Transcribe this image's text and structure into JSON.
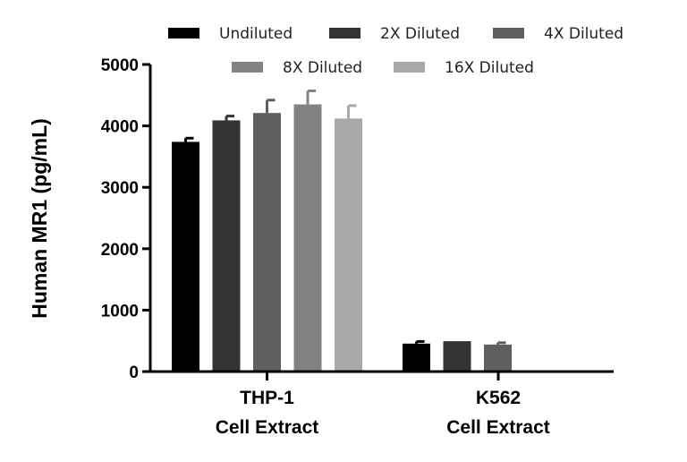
{
  "chart_data": {
    "type": "bar",
    "title": "",
    "xlabel": "",
    "ylabel": "Human MR1 (pg/mL)",
    "ylim": [
      0,
      5000
    ],
    "yticks": [
      0,
      1000,
      2000,
      3000,
      4000,
      5000
    ],
    "grid": false,
    "legend_position": "top",
    "categories": [
      {
        "line1": "THP-1",
        "line2": "Cell Extract"
      },
      {
        "line1": "K562",
        "line2": "Cell Extract"
      }
    ],
    "series": [
      {
        "name": "Undiluted",
        "color": "#000000",
        "values": [
          3740,
          455
        ],
        "errors": [
          60,
          35
        ]
      },
      {
        "name": "2X Diluted",
        "color": "#333333",
        "values": [
          4090,
          495
        ],
        "errors": [
          70,
          0
        ]
      },
      {
        "name": "4X Diluted",
        "color": "#5f5f5f",
        "values": [
          4210,
          440
        ],
        "errors": [
          210,
          30
        ]
      },
      {
        "name": "8X Diluted",
        "color": "#828282",
        "values": [
          4350,
          null
        ],
        "errors": [
          220,
          null
        ]
      },
      {
        "name": "16X Diluted",
        "color": "#a8a8a8",
        "values": [
          4120,
          null
        ],
        "errors": [
          210,
          null
        ]
      }
    ]
  }
}
